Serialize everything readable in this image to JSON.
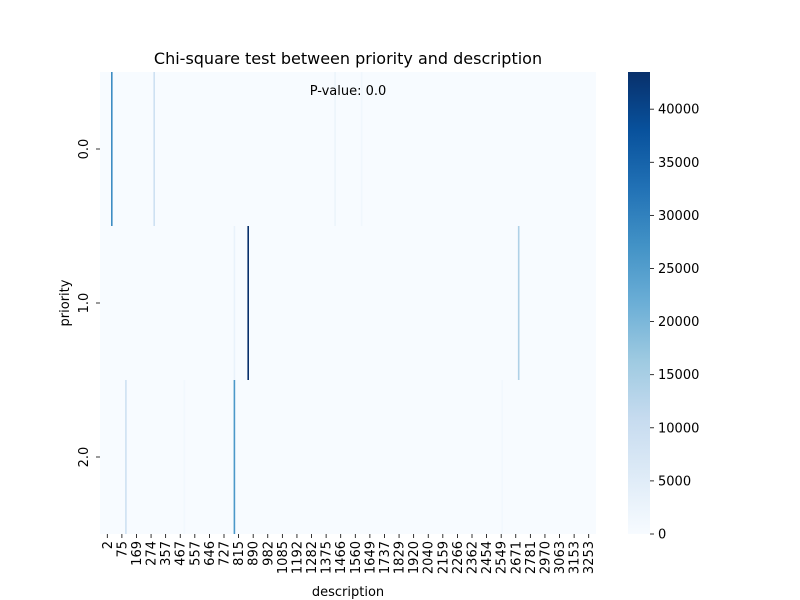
{
  "chart_data": {
    "type": "heatmap",
    "title": "Chi-square test between priority and description",
    "annotation": "P-value: 0.0",
    "xlabel": "description",
    "ylabel": "priority",
    "y_categories": [
      "0.0",
      "1.0",
      "2.0"
    ],
    "x_tick_labels": [
      "2",
      "75",
      "169",
      "274",
      "357",
      "467",
      "557",
      "646",
      "727",
      "815",
      "890",
      "982",
      "1085",
      "1192",
      "1282",
      "1375",
      "1466",
      "1560",
      "1649",
      "1737",
      "1829",
      "1920",
      "2040",
      "2159",
      "2266",
      "2362",
      "2454",
      "2549",
      "2671",
      "2781",
      "2970",
      "3063",
      "3153",
      "3253"
    ],
    "x_range": [
      2,
      3300
    ],
    "colormap": "Blues",
    "colorbar_range": [
      0,
      43500
    ],
    "colorbar_ticks": [
      0,
      5000,
      10000,
      15000,
      20000,
      25000,
      30000,
      35000,
      40000
    ],
    "colorbar_tick_labels": [
      "0",
      "5000",
      "10000",
      "15000",
      "20000",
      "25000",
      "30000",
      "35000",
      "40000"
    ],
    "nonzero_cells": [
      {
        "row": "0.0",
        "x": 75,
        "value": 28000
      },
      {
        "row": "0.0",
        "x": 357,
        "value": 9000
      },
      {
        "row": "0.0",
        "x": 1560,
        "value": 2500
      },
      {
        "row": "0.0",
        "x": 1737,
        "value": 1500
      },
      {
        "row": "1.0",
        "x": 982,
        "value": 43500
      },
      {
        "row": "1.0",
        "x": 890,
        "value": 3000
      },
      {
        "row": "1.0",
        "x": 2781,
        "value": 14000
      },
      {
        "row": "2.0",
        "x": 169,
        "value": 9000
      },
      {
        "row": "2.0",
        "x": 890,
        "value": 26000
      },
      {
        "row": "2.0",
        "x": 557,
        "value": 1000
      },
      {
        "row": "2.0",
        "x": 2671,
        "value": 1000
      }
    ]
  }
}
